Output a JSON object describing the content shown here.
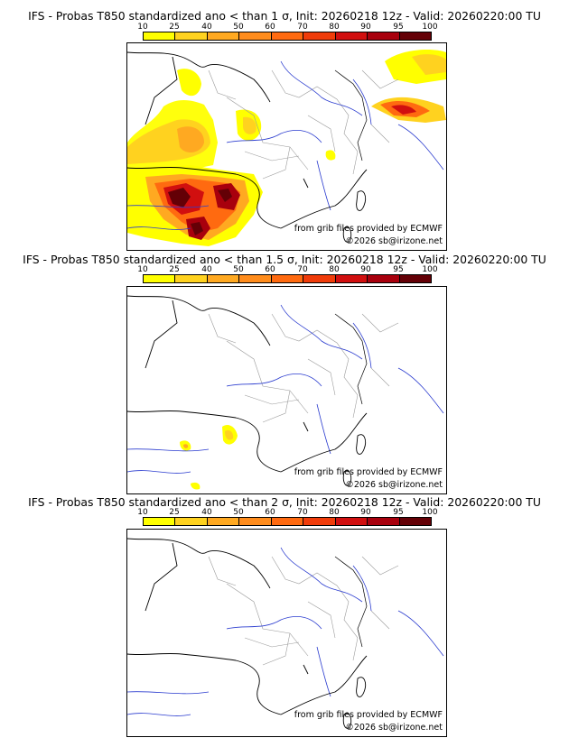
{
  "panels": [
    {
      "title": "IFS - Probas T850  standardized ano < than 1 σ, Init: 20260218 12z - Valid: 20260220:00 TU",
      "credit": "from grib files provided by ECMWF",
      "copyright": "©2026 sb@irizone.net"
    },
    {
      "title": "IFS - Probas T850  standardized ano < than 1.5 σ, Init: 20260218 12z - Valid: 20260220:00 TU",
      "credit": "from grib files provided by ECMWF",
      "copyright": "©2026 sb@irizone.net"
    },
    {
      "title": "IFS - Probas T850  standardized ano < than 2 σ, Init: 20260218 12z - Valid: 20260220:00 TU",
      "credit": "from grib files provided by ECMWF",
      "copyright": "©2026 sb@irizone.net"
    }
  ],
  "colorbar": {
    "ticks": [
      "10",
      "25",
      "40",
      "50",
      "60",
      "70",
      "80",
      "90",
      "95",
      "100"
    ],
    "colors": [
      "#ffff00",
      "#ffd21f",
      "#ffa921",
      "#ff8c1c",
      "#ff6a10",
      "#f03c0a",
      "#d10f0f",
      "#a8000d",
      "#640006"
    ]
  },
  "colors": {
    "coast": "#000000",
    "rivers": "#2b3ccf",
    "borders": "#9a9a9a"
  }
}
